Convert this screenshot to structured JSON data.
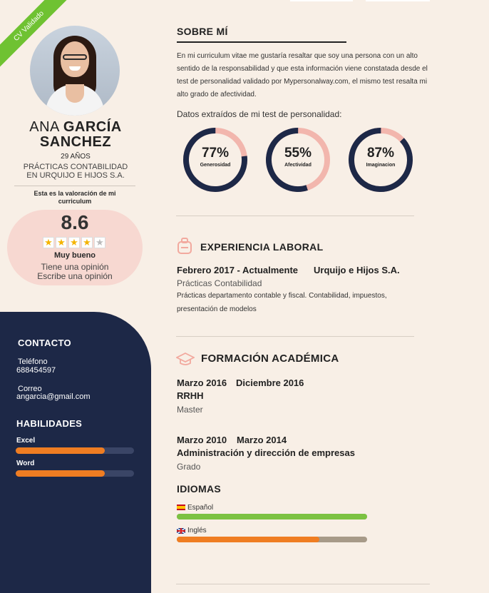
{
  "ribbon": "CV Validado",
  "profile": {
    "first_name": "ANA",
    "last_name_1": "GARCÍA",
    "last_name_2": "SANCHEZ",
    "age": "29 AÑOS",
    "job_line1": "PRÁCTICAS CONTABILIDAD",
    "job_line2": "EN URQUIJO E HIJOS S.A."
  },
  "rating": {
    "label": "Esta es la valoración de mi curriculum",
    "score": "8.6",
    "stars_on": 4,
    "stars_total": 5,
    "verdict": "Muy bueno",
    "opinions": "Tiene una opinión",
    "write": "Escribe una opinión"
  },
  "contact": {
    "title": "CONTACTO",
    "phone_label": "Teléfono",
    "phone": "688454597",
    "email_label": "Correo",
    "email": "angarcia@gmail.com"
  },
  "skills": {
    "title": "HABILIDADES",
    "items": [
      {
        "name": "Excel",
        "level": 0.75
      },
      {
        "name": "Word",
        "level": 0.75
      }
    ]
  },
  "about": {
    "title": "SOBRE MÍ",
    "text": "En mi curriculum vitae me gustaría resaltar que soy una persona con un alto sentido de la responsabilidad y que esta información viene constatada desde el test de personalidad validado por Mypersonalway.com, el mismo test resalta mi alto grado de afectividad.",
    "data_label": "Datos extraídos de mi test de personalidad:",
    "traits": [
      {
        "value": "77%",
        "name": "Generosidad",
        "fraction": 0.77
      },
      {
        "value": "55%",
        "name": "Afectividad",
        "fraction": 0.55
      },
      {
        "value": "87%",
        "name": "Imaginacion",
        "fraction": 0.87
      }
    ]
  },
  "experience": {
    "title": "EXPERIENCIA LABORAL",
    "period": "Febrero 2017 - Actualmente",
    "company": "Urquijo e Hijos S.A.",
    "role": "Prácticas Contabilidad",
    "desc_line1": "Prácticas departamento contable y fiscal. Contabilidad, impuestos,",
    "desc_line2": "presentación de modelos"
  },
  "education": {
    "title": "FORMACIÓN ACADÉMICA",
    "items": [
      {
        "start": "Marzo 2016",
        "end": "Diciembre 2016",
        "name": "RRHH",
        "type": "Master"
      },
      {
        "start": "Marzo 2010",
        "end": "Marzo 2014",
        "name": "Administración y dirección de empresas",
        "type": "Grado"
      }
    ]
  },
  "languages": {
    "title": "IDIOMAS",
    "items": [
      {
        "name": "Español",
        "level": 1.0,
        "color": "#7cc242"
      },
      {
        "name": "Inglés",
        "level": 0.75,
        "color": "#ef7d22"
      }
    ]
  },
  "colors": {
    "accent_orange": "#ef7d22",
    "navy": "#1d2847",
    "ring_pink": "#f2b6ad",
    "green": "#6fc232"
  }
}
